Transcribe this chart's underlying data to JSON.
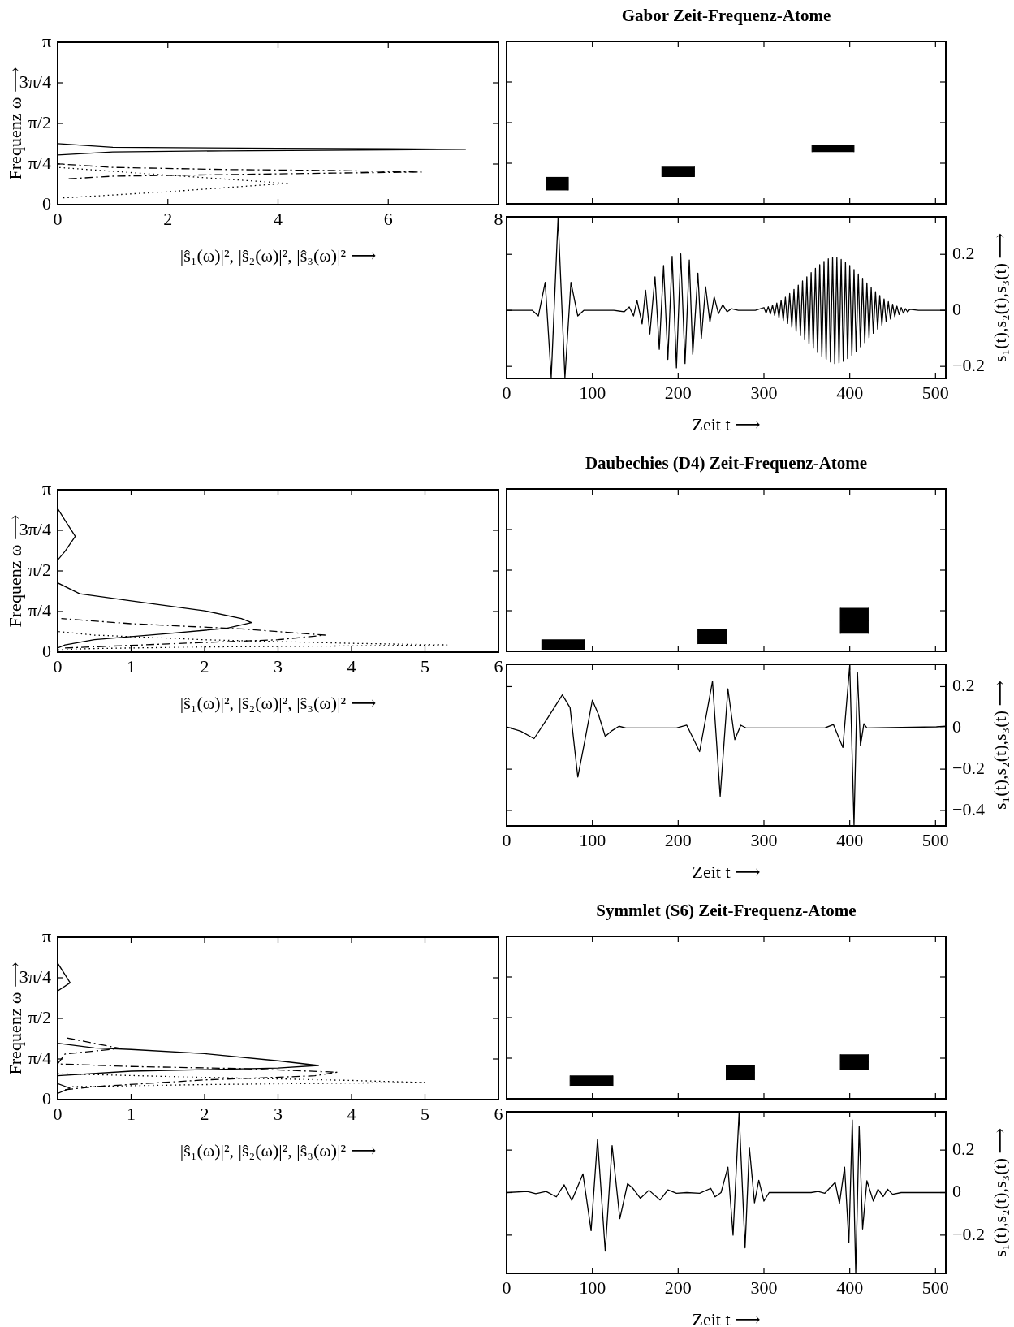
{
  "chart_data": [
    {
      "type": "line",
      "xlabel": "|ŝ₁(ω)|², |ŝ₂(ω)|², |ŝ₃(ω)|² ⟶",
      "ylabel": "Frequenz ω ⟶",
      "xlim": [
        0,
        8
      ],
      "xticks": [
        0,
        2,
        4,
        6,
        8
      ],
      "ylim": [
        0,
        3.1416
      ],
      "yticks": [
        0,
        {
          "value": 0.7854,
          "label": "π/4"
        },
        {
          "value": 1.5708,
          "label": "π/2"
        },
        {
          "value": 2.3562,
          "label": "3π/4"
        },
        {
          "value": 3.1416,
          "label": "π"
        }
      ],
      "marker": "none",
      "series": [
        {
          "color": "#000000",
          "line_style": "solid",
          "x": [
            0,
            1,
            3,
            6,
            7.4,
            6,
            4,
            1,
            0
          ],
          "values": [
            0.96,
            1.02,
            1.04,
            1.06,
            1.07,
            1.08,
            1.09,
            1.11,
            1.18
          ]
        },
        {
          "color": "#000000",
          "line_style": "dashed",
          "x": [
            0.2,
            1,
            3,
            5,
            6.6,
            5,
            3,
            1,
            0
          ],
          "values": [
            0.5,
            0.55,
            0.58,
            0.61,
            0.63,
            0.66,
            0.68,
            0.72,
            0.79
          ]
        },
        {
          "color": "#000000",
          "line_style": "dotted",
          "x": [
            0.1,
            2,
            4,
            4.2,
            2,
            0
          ],
          "values": [
            0.13,
            0.25,
            0.4,
            0.41,
            0.57,
            0.72
          ]
        }
      ]
    },
    {
      "type": "bar",
      "title": "Gabor Zeit-Frequenz-Atome",
      "x": [
        59,
        200,
        380.5
      ],
      "base": [
        0.26,
        0.52,
        1.0
      ],
      "values": [
        0.26,
        0.2,
        0.14
      ],
      "xerrors": [
        [
          46,
          72
        ],
        [
          181,
          219
        ],
        [
          356,
          405
        ]
      ],
      "color": "#000000",
      "xlim": [
        0,
        512
      ],
      "xticks": [
        0,
        100,
        200,
        300,
        400,
        500
      ],
      "ylim": [
        0,
        3.1416
      ],
      "yticks": [
        {
          "value": 0,
          "label": null
        },
        {
          "value": 0.7854,
          "label": null
        },
        {
          "value": 1.5708,
          "label": null
        },
        {
          "value": 2.3562,
          "label": null
        },
        {
          "value": 3.1416,
          "label": null
        }
      ],
      "tick_labels": false
    },
    {
      "type": "line",
      "xlabel": "Zeit t ⟶",
      "ylabel": "s₁(t),s₂(t),s₃(t) ⟶",
      "color": "#000000",
      "marker": "none",
      "xlim": [
        0,
        512
      ],
      "xticks": [
        0,
        100,
        200,
        300,
        400,
        500
      ],
      "ylim": [
        -0.243,
        0.334
      ],
      "yticks": [
        -0.2,
        0,
        0.2
      ],
      "x": [
        0,
        30,
        37,
        45,
        52,
        60,
        68,
        75,
        83,
        90,
        125,
        137,
        143,
        148,
        152,
        158,
        162,
        167,
        173,
        178,
        183,
        188,
        193,
        198,
        203,
        208,
        213,
        217,
        223,
        227,
        232,
        237,
        242,
        247,
        252,
        257,
        262,
        270,
        290,
        300,
        302.5,
        305,
        307.5,
        310,
        312.5,
        315,
        317.5,
        320,
        322.5,
        325,
        327.5,
        330,
        332.5,
        335,
        337.5,
        340,
        342.5,
        345,
        347.5,
        350,
        352.5,
        355,
        357.5,
        360,
        362.5,
        365,
        367.5,
        370,
        372.5,
        375,
        377.5,
        380,
        382.5,
        385,
        387.5,
        390,
        392.5,
        395,
        397.5,
        400,
        402.5,
        405,
        407.5,
        410,
        412.5,
        415,
        417.5,
        420,
        422.5,
        425,
        427.5,
        430,
        432.5,
        435,
        437.5,
        440,
        442.5,
        445,
        447.5,
        450,
        452.5,
        455,
        457.5,
        460,
        462.5,
        465,
        467.5,
        470,
        480,
        512
      ],
      "values": [
        0,
        0,
        -0.02,
        0.1,
        -0.24,
        0.33,
        -0.24,
        0.1,
        -0.02,
        0,
        0,
        -0.005,
        0.012,
        -0.02,
        0.036,
        -0.048,
        0.072,
        -0.084,
        0.12,
        -0.139,
        0.16,
        -0.175,
        0.193,
        -0.205,
        0.202,
        -0.19,
        0.18,
        -0.157,
        0.133,
        -0.1,
        0.084,
        -0.042,
        0.048,
        -0.012,
        0.02,
        -0.005,
        0.006,
        0,
        0,
        0.01,
        -0.01,
        0.013,
        -0.013,
        0.018,
        -0.018,
        0.026,
        -0.026,
        0.036,
        -0.036,
        0.047,
        -0.047,
        0.06,
        -0.06,
        0.075,
        -0.075,
        0.09,
        -0.09,
        0.105,
        -0.105,
        0.12,
        -0.12,
        0.135,
        -0.135,
        0.15,
        -0.15,
        0.163,
        -0.163,
        0.175,
        -0.175,
        0.184,
        -0.184,
        0.19,
        -0.19,
        0.188,
        -0.188,
        0.182,
        -0.182,
        0.172,
        -0.172,
        0.16,
        -0.16,
        0.146,
        -0.146,
        0.13,
        -0.13,
        0.115,
        -0.115,
        0.098,
        -0.098,
        0.082,
        -0.082,
        0.067,
        -0.067,
        0.053,
        -0.053,
        0.041,
        -0.041,
        0.031,
        -0.031,
        0.022,
        -0.022,
        0.015,
        -0.015,
        0.01,
        -0.01,
        0.006,
        -0.006,
        0.004,
        0,
        0
      ]
    },
    {
      "type": "line",
      "xlabel": "|ŝ₁(ω)|², |ŝ₂(ω)|², |ŝ₃(ω)|² ⟶",
      "ylabel": "Frequenz ω ⟶",
      "xlim": [
        0,
        6
      ],
      "xticks": [
        0,
        1,
        2,
        3,
        4,
        5,
        6
      ],
      "ylim": [
        0,
        3.1416
      ],
      "yticks": [
        0,
        {
          "value": 0.7854,
          "label": "π/4"
        },
        {
          "value": 1.5708,
          "label": "π/2"
        },
        {
          "value": 2.3562,
          "label": "3π/4"
        },
        {
          "value": 3.1416,
          "label": "π"
        }
      ],
      "marker": "none",
      "series": [
        {
          "color": "#000000",
          "line_style": "solid",
          "x": [
            0,
            0.1,
            0.5,
            1.5,
            2.3,
            2.64,
            2.5,
            2,
            1,
            0.3,
            0,
            0,
            0.1,
            0.24,
            0.1,
            0
          ],
          "values": [
            0.08,
            0.14,
            0.24,
            0.36,
            0.46,
            0.57,
            0.65,
            0.8,
            0.99,
            1.13,
            1.34,
            1.78,
            1.95,
            2.24,
            2.55,
            2.78
          ]
        },
        {
          "color": "#000000",
          "line_style": "dashed",
          "x": [
            0.1,
            1.5,
            3,
            3.64,
            2.5,
            1,
            0.05
          ],
          "values": [
            0.08,
            0.16,
            0.24,
            0.33,
            0.45,
            0.55,
            0.65
          ]
        },
        {
          "color": "#000000",
          "line_style": "dotted",
          "x": [
            0,
            0.5,
            2,
            4,
            5.3,
            4,
            2,
            0.5,
            0
          ],
          "values": [
            0.05,
            0.07,
            0.1,
            0.12,
            0.14,
            0.17,
            0.24,
            0.33,
            0.4
          ]
        }
      ]
    },
    {
      "type": "bar",
      "title": "Daubechies (D4) Zeit-Frequenz-Atome",
      "x": [
        66,
        239.5,
        405.5
      ],
      "base": [
        0.03,
        0.14,
        0.34
      ],
      "values": [
        0.2,
        0.29,
        0.5
      ],
      "xerrors": [
        [
          41,
          91
        ],
        [
          223,
          256
        ],
        [
          389,
          422
        ]
      ],
      "color": "#000000",
      "xlim": [
        0,
        512
      ],
      "xticks": [
        0,
        100,
        200,
        300,
        400,
        500
      ],
      "ylim": [
        0,
        3.1416
      ],
      "yticks": [
        {
          "value": 0,
          "label": null
        },
        {
          "value": 0.7854,
          "label": null
        },
        {
          "value": 1.5708,
          "label": null
        },
        {
          "value": 2.3562,
          "label": null
        },
        {
          "value": 3.1416,
          "label": null
        }
      ],
      "tick_labels": false
    },
    {
      "type": "line",
      "xlabel": "Zeit t ⟶",
      "ylabel": "s₁(t),s₂(t),s₃(t) ⟶",
      "color": "#000000",
      "marker": "none",
      "xlim": [
        0,
        512
      ],
      "xticks": [
        0,
        100,
        200,
        300,
        400,
        500
      ],
      "ylim": [
        -0.475,
        0.308
      ],
      "yticks": [
        -0.4,
        -0.2,
        0,
        0.2
      ],
      "x": [
        0,
        16.5,
        32,
        48,
        65,
        74,
        83,
        91,
        100,
        107,
        115,
        123,
        131,
        139,
        198,
        210,
        225,
        240,
        249,
        258,
        266,
        273,
        279,
        371,
        381,
        392,
        400,
        405,
        409,
        412.5,
        416.5,
        420,
        501,
        512
      ],
      "values": [
        0.005,
        -0.016,
        -0.052,
        0.049,
        0.16,
        0.098,
        -0.238,
        -0.066,
        0.134,
        0.066,
        -0.041,
        -0.013,
        0.008,
        0,
        0,
        0.013,
        -0.115,
        0.226,
        -0.331,
        0.189,
        -0.057,
        0.013,
        0,
        0,
        0.016,
        -0.095,
        0.303,
        -0.47,
        0.27,
        -0.087,
        0.02,
        0,
        0.005,
        0.008
      ]
    },
    {
      "type": "line",
      "xlabel": "|ŝ₁(ω)|², |ŝ₂(ω)|², |ŝ₃(ω)|² ⟶",
      "ylabel": "Frequenz ω ⟶",
      "xlim": [
        0,
        6
      ],
      "xticks": [
        0,
        1,
        2,
        3,
        4,
        5,
        6
      ],
      "ylim": [
        0,
        3.1416
      ],
      "yticks": [
        0,
        {
          "value": 0.7854,
          "label": "π/4"
        },
        {
          "value": 1.5708,
          "label": "π/2"
        },
        {
          "value": 2.3562,
          "label": "3π/4"
        },
        {
          "value": 3.1416,
          "label": "π"
        }
      ],
      "marker": "none",
      "series": [
        {
          "color": "#000000",
          "line_style": "solid",
          "x": [
            0,
            0.17,
            0,
            0,
            1,
            2,
            3,
            3.55,
            3,
            2,
            1,
            0.5,
            0,
            0,
            0.17,
            0
          ],
          "values": [
            0.12,
            0.22,
            0.31,
            0.46,
            0.55,
            0.58,
            0.61,
            0.66,
            0.75,
            0.89,
            0.97,
            1.0,
            1.09,
            2.1,
            2.26,
            2.64
          ]
        },
        {
          "color": "#000000",
          "line_style": "dashed",
          "x": [
            0.1,
            0.5,
            2,
            3.5,
            3.8,
            2.5,
            1,
            0,
            0.1,
            0.85,
            0.1
          ],
          "values": [
            0.19,
            0.25,
            0.38,
            0.46,
            0.53,
            0.6,
            0.64,
            0.69,
            0.88,
            0.99,
            1.2
          ]
        },
        {
          "color": "#000000",
          "line_style": "dotted",
          "x": [
            0.2,
            2,
            4,
            5,
            4,
            2,
            0
          ],
          "values": [
            0.25,
            0.29,
            0.32,
            0.33,
            0.37,
            0.43,
            0.5
          ]
        }
      ]
    },
    {
      "type": "bar",
      "title": "Symmlet (S6) Zeit-Frequenz-Atome",
      "x": [
        99,
        272.5,
        405.5
      ],
      "base": [
        0.25,
        0.36,
        0.56
      ],
      "values": [
        0.2,
        0.29,
        0.3
      ],
      "xerrors": [
        [
          74,
          124
        ],
        [
          256,
          289
        ],
        [
          389,
          422
        ]
      ],
      "color": "#000000",
      "xlim": [
        0,
        512
      ],
      "xticks": [
        0,
        100,
        200,
        300,
        400,
        500
      ],
      "ylim": [
        0,
        3.1416
      ],
      "yticks": [
        {
          "value": 0,
          "label": null
        },
        {
          "value": 0.7854,
          "label": null
        },
        {
          "value": 1.5708,
          "label": null
        },
        {
          "value": 2.3562,
          "label": null
        },
        {
          "value": 3.1416,
          "label": null
        }
      ],
      "tick_labels": false
    },
    {
      "type": "line",
      "xlabel": "Zeit t ⟶",
      "ylabel": "s₁(t),s₂(t),s₃(t) ⟶",
      "color": "#000000",
      "marker": "none",
      "xlim": [
        0,
        512
      ],
      "xticks": [
        0,
        100,
        200,
        300,
        400,
        500
      ],
      "ylim": [
        -0.38,
        0.38
      ],
      "yticks": [
        -0.2,
        0,
        0.2
      ],
      "x": [
        0,
        24,
        34,
        46,
        58,
        67,
        76,
        89,
        98.5,
        106,
        115,
        123,
        132,
        141,
        147,
        156,
        166,
        179,
        188,
        198,
        210,
        225,
        238,
        243,
        250,
        258,
        264,
        271,
        278,
        283,
        289,
        294,
        300,
        306,
        324,
        355,
        363,
        371,
        383,
        388,
        394,
        399,
        403,
        407,
        411,
        415,
        420,
        427.5,
        433,
        439,
        444,
        450,
        460,
        512
      ],
      "values": [
        0,
        0.005,
        -0.005,
        0.005,
        -0.02,
        0.037,
        -0.037,
        0.088,
        -0.179,
        0.25,
        -0.275,
        0.221,
        -0.123,
        0.042,
        0.021,
        -0.027,
        0.011,
        -0.035,
        0.013,
        -0.003,
        0,
        -0.003,
        0.02,
        -0.02,
        0,
        0.12,
        -0.2,
        0.376,
        -0.26,
        0.213,
        -0.048,
        0.058,
        -0.04,
        0,
        0,
        0,
        0.005,
        -0.003,
        0.048,
        -0.051,
        0.12,
        -0.235,
        0.341,
        -0.379,
        0.312,
        -0.171,
        0.056,
        -0.04,
        0.016,
        -0.019,
        0.016,
        -0.008,
        0,
        0
      ]
    }
  ]
}
